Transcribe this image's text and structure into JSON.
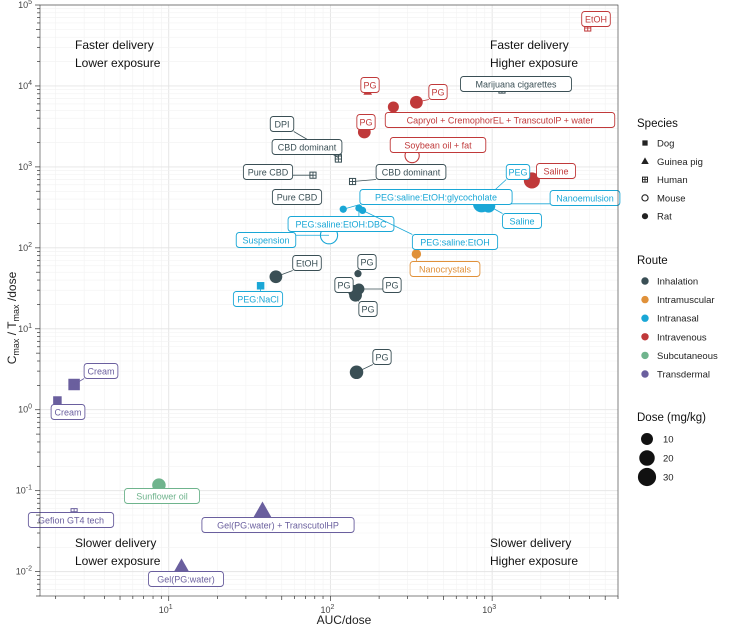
{
  "chart_data": {
    "type": "scatter",
    "title": "",
    "xlabel": "AUC/dose",
    "ylabel_parts": {
      "c": "C",
      "c_sub": "max",
      "sep": " / T",
      "t_sub": "max",
      "tail": " /dose"
    },
    "xscale": "log",
    "yscale": "log",
    "xlim": [
      1.6,
      6000
    ],
    "ylim": [
      0.005,
      100000
    ],
    "grid": true,
    "x_ticks": [
      {
        "value": 10,
        "base": "10",
        "exp": "1"
      },
      {
        "value": 100,
        "base": "10",
        "exp": "2"
      },
      {
        "value": 1000,
        "base": "10",
        "exp": "3"
      }
    ],
    "y_ticks": [
      {
        "value": 0.01,
        "base": "10",
        "exp": "-2"
      },
      {
        "value": 0.1,
        "base": "10",
        "exp": "-1"
      },
      {
        "value": 1,
        "base": "10",
        "exp": "0"
      },
      {
        "value": 10,
        "base": "10",
        "exp": "1"
      },
      {
        "value": 100,
        "base": "10",
        "exp": "2"
      },
      {
        "value": 1000,
        "base": "10",
        "exp": "3"
      },
      {
        "value": 10000,
        "base": "10",
        "exp": "4"
      },
      {
        "value": 100000,
        "base": "10",
        "exp": "5"
      }
    ],
    "quadrant_labels": [
      {
        "lines": [
          "Faster delivery",
          "Lower exposure"
        ],
        "position": "top-left"
      },
      {
        "lines": [
          "Faster delivery",
          "Higher exposure"
        ],
        "position": "top-right"
      },
      {
        "lines": [
          "Slower delivery",
          "Lower exposure"
        ],
        "position": "bottom-left"
      },
      {
        "lines": [
          "Slower delivery",
          "Higher exposure"
        ],
        "position": "bottom-right"
      }
    ],
    "route_colors": {
      "Inhalation": "#3a4f55",
      "Intramuscular": "#e0913a",
      "Intranasal": "#1aa7d6",
      "Intravenous": "#c0393a",
      "Subcutaneous": "#6fb48d",
      "Transdermal": "#6a5f9e"
    },
    "points": [
      {
        "label": "EtOH",
        "x": 3900,
        "y": 52000,
        "species": "Human",
        "route": "Intravenous",
        "dose": 2
      },
      {
        "label": "PG",
        "x": 170,
        "y": 8500,
        "species": "Guinea pig",
        "route": "Intravenous",
        "dose": 2
      },
      {
        "label": "PG",
        "x": 340,
        "y": 6300,
        "species": "Rat",
        "route": "Intravenous",
        "dose": 12
      },
      {
        "label": "Marijuana cigarettes",
        "x": 1150,
        "y": 8900,
        "species": "Human",
        "route": "Inhalation",
        "dose": 2
      },
      {
        "label": "Capryol + CremophorEL + TranscutolP + water",
        "x": 245,
        "y": 5500,
        "species": "Rat",
        "route": "Intravenous",
        "dose": 8
      },
      {
        "label": "PG",
        "x": 162,
        "y": 2700,
        "species": "Rat",
        "route": "Intravenous",
        "dose": 12
      },
      {
        "label": "DPI",
        "x": 112,
        "y": 1300,
        "species": "Human",
        "route": "Inhalation",
        "dose": 2
      },
      {
        "label": "CBD dominant",
        "x": 112,
        "y": 1250,
        "species": "Human",
        "route": "Inhalation",
        "dose": 2
      },
      {
        "label": "Soybean oil + fat",
        "x": 320,
        "y": 1380,
        "species": "Mouse",
        "route": "Intravenous",
        "dose": 16
      },
      {
        "label": "Saline",
        "x": 1760,
        "y": 680,
        "species": "Rat",
        "route": "Intravenous",
        "dose": 22
      },
      {
        "label": "Pure CBD",
        "x": 78,
        "y": 790,
        "species": "Human",
        "route": "Inhalation",
        "dose": 2
      },
      {
        "label": "CBD dominant",
        "x": 137,
        "y": 660,
        "species": "Human",
        "route": "Inhalation",
        "dose": 2
      },
      {
        "label": "Pure CBD",
        "x": 78,
        "y": 390,
        "species": "Human",
        "route": "Inhalation",
        "dose": 2
      },
      {
        "label": "PEG",
        "x": 870,
        "y": 375,
        "species": "Rat",
        "route": "Intranasal",
        "dose": 20
      },
      {
        "label": "Nanoemulsion",
        "x": 860,
        "y": 350,
        "species": "Rat",
        "route": "Intranasal",
        "dose": 26
      },
      {
        "label": "Saline",
        "x": 950,
        "y": 330,
        "species": "Rat",
        "route": "Intranasal",
        "dose": 14
      },
      {
        "label": "PEG:saline:EtOH:glycocholate",
        "x": 120,
        "y": 300,
        "species": "Rat",
        "route": "Intranasal",
        "dose": 2
      },
      {
        "label": "PEG:saline:EtOH:DBC",
        "x": 150,
        "y": 310,
        "species": "Rat",
        "route": "Intranasal",
        "dose": 2
      },
      {
        "label": "PEG:saline:EtOH",
        "x": 158,
        "y": 290,
        "species": "Rat",
        "route": "Intranasal",
        "dose": 2
      },
      {
        "label": "Suspension",
        "x": 98,
        "y": 143,
        "species": "Mouse",
        "route": "Intranasal",
        "dose": 26
      },
      {
        "label": "Nanocrystals",
        "x": 340,
        "y": 84,
        "species": "Rat",
        "route": "Intramuscular",
        "dose": 5
      },
      {
        "label": "PG",
        "x": 148,
        "y": 48,
        "species": "Rat",
        "route": "Inhalation",
        "dose": 2
      },
      {
        "label": "EtOH",
        "x": 46,
        "y": 44,
        "species": "Rat",
        "route": "Inhalation",
        "dose": 12
      },
      {
        "label": "PEG:NaCl",
        "x": 37,
        "y": 34,
        "species": "Dog",
        "route": "Intranasal",
        "dose": 4
      },
      {
        "label": "PG",
        "x": 141,
        "y": 29,
        "species": "Rat",
        "route": "Inhalation",
        "dose": 12
      },
      {
        "label": "PG",
        "x": 150,
        "y": 31,
        "species": "Rat",
        "route": "Inhalation",
        "dose": 8
      },
      {
        "label": "PG",
        "x": 143,
        "y": 26,
        "species": "Rat",
        "route": "Inhalation",
        "dose": 12
      },
      {
        "label": "PG",
        "x": 145,
        "y": 2.9,
        "species": "Rat",
        "route": "Inhalation",
        "dose": 14
      },
      {
        "label": "Cream",
        "x": 2.6,
        "y": 2.05,
        "species": "Dog",
        "route": "Transdermal",
        "dose": 14
      },
      {
        "label": "Cream",
        "x": 2.05,
        "y": 1.3,
        "species": "Dog",
        "route": "Transdermal",
        "dose": 6
      },
      {
        "label": "Sunflower oil",
        "x": 8.7,
        "y": 0.117,
        "species": "Rat",
        "route": "Subcutaneous",
        "dose": 14
      },
      {
        "label": "Gefion GT4 tech",
        "x": 2.6,
        "y": 0.055,
        "species": "Human",
        "route": "Transdermal",
        "dose": 2
      },
      {
        "label": "Gel(PG:water) + TranscutolHP",
        "x": 38,
        "y": 0.053,
        "species": "Guinea pig",
        "route": "Transdermal",
        "dose": 30
      },
      {
        "label": "Gel(PG:water)",
        "x": 12,
        "y": 0.0105,
        "species": "Guinea pig",
        "route": "Transdermal",
        "dose": 30
      }
    ],
    "legends": {
      "species": {
        "title": "Species",
        "items": [
          "Dog",
          "Guinea pig",
          "Human",
          "Mouse",
          "Rat"
        ]
      },
      "route": {
        "title": "Route",
        "items": [
          "Inhalation",
          "Intramuscular",
          "Intranasal",
          "Intravenous",
          "Subcutaneous",
          "Transdermal"
        ]
      },
      "dose": {
        "title": "Dose (mg/kg)",
        "items": [
          10,
          20,
          30
        ]
      }
    },
    "legend_position": "right"
  }
}
